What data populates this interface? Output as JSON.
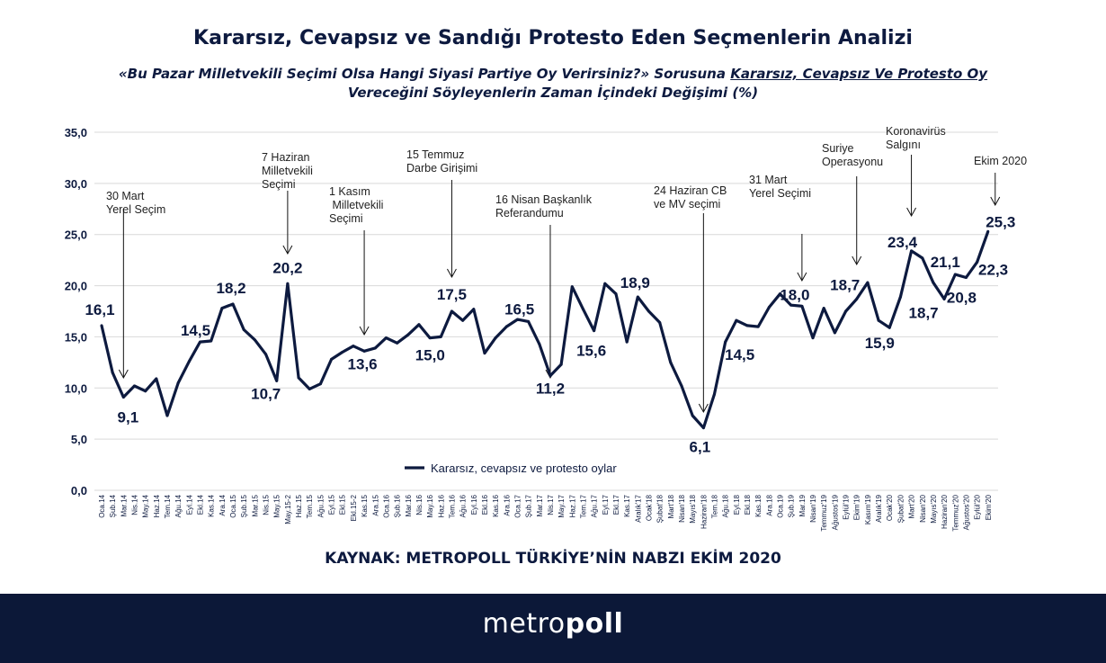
{
  "title": "Kararsız, Cevapsız ve Sandığı Protesto Eden Seçmenlerin Analizi",
  "subtitle": {
    "line1_prefix": "«Bu Pazar Milletvekili Seçimi Olsa Hangi Siyasi Partiye Oy Verirsiniz?» Sorusuna ",
    "line1_underlined": "Kararsız, Cevapsız Ve Protesto Oy",
    "line2": "Vereceğini Söyleyenlerin Zaman İçindeki Değişimi (%)"
  },
  "source": "KAYNAK: METROPOLL TÜRKİYE’NİN NABZI EKİM 2020",
  "logo": {
    "light": "metro",
    "bold": "poll"
  },
  "colors": {
    "line": "#0d1a3f",
    "grid": "#d9d9d9",
    "footer": "#0c1838"
  },
  "chart_data": {
    "type": "line",
    "title": "",
    "xlabel": "",
    "ylabel": "",
    "ylim": [
      0,
      35
    ],
    "yticks": [
      0,
      5,
      10,
      15,
      20,
      25,
      30,
      35
    ],
    "ytick_labels": [
      "0,0",
      "5,0",
      "10,0",
      "15,0",
      "20,0",
      "25,0",
      "30,0",
      "35,0"
    ],
    "grid": true,
    "legend_position": "bottom-center",
    "categories": [
      "Oca.14",
      "Şub.14",
      "Mar.14",
      "Nis.14",
      "May.14",
      "Haz.14",
      "Tem.14",
      "Ağu.14",
      "Eyl.14",
      "Ekl.14",
      "Kas.14",
      "Ara.14",
      "Oca.15",
      "Şub.15",
      "Mar.15",
      "Nis.15",
      "May.15",
      "May.15-2",
      "Haz.15",
      "Tem.15",
      "Ağu.15",
      "Eyl.15",
      "Ekl.15",
      "Ekl.15-2",
      "Kas.15",
      "Ara.15",
      "Oca.16",
      "Şub.16",
      "Mar.16",
      "Nis.16",
      "May.16",
      "Haz.16",
      "Tem.16",
      "Ağu.16",
      "Eyl.16",
      "Ekl.16",
      "Kas.16",
      "Ara.16",
      "Oca.17",
      "Şub.17",
      "Mar.17",
      "Nis.17",
      "May.17",
      "Haz.17",
      "Tem.17",
      "Ağu.17",
      "Eyl.17",
      "Ekl.17",
      "Kas.17",
      "Aralık'17",
      "Ocak'18",
      "Şubat'18",
      "Mart'18",
      "Nisan'18",
      "Mayıs'18",
      "Haziran'18",
      "Tem.18",
      "Ağu.18",
      "Eyl.18",
      "Ekl.18",
      "Kas.18",
      "Ara.18",
      "Oca.19",
      "Şub.19",
      "Mar.19",
      "Nisan'19",
      "Temmuz'19",
      "Ağustos'19",
      "Eylül'19",
      "Ekim'19",
      "Kasım'19",
      "Aralık'19",
      "Ocak'20",
      "Şubat'20",
      "Mart'20",
      "Nisan'20",
      "Mayıs'20",
      "Haziran'20",
      "Temmuz'20",
      "Ağustos'20",
      "Eylül'20",
      "Ekim'20"
    ],
    "series": [
      {
        "name": "Kararsız, cevapsız ve protesto oylar",
        "values": [
          16.1,
          11.5,
          9.1,
          10.2,
          9.7,
          10.9,
          7.3,
          10.5,
          12.6,
          14.5,
          14.6,
          17.8,
          18.2,
          15.7,
          14.7,
          13.3,
          10.7,
          20.2,
          11.0,
          9.9,
          10.4,
          12.8,
          13.5,
          14.1,
          13.6,
          13.9,
          14.9,
          14.4,
          15.2,
          16.2,
          14.9,
          15.0,
          17.5,
          16.6,
          17.7,
          13.4,
          14.9,
          16.0,
          16.7,
          16.5,
          14.3,
          11.2,
          12.3,
          19.9,
          17.7,
          15.6,
          20.2,
          19.2,
          14.5,
          18.9,
          17.5,
          16.4,
          12.5,
          10.2,
          7.3,
          6.1,
          9.4,
          14.5,
          16.6,
          16.1,
          16.0,
          17.9,
          19.2,
          18.1,
          18.0,
          14.9,
          17.8,
          15.4,
          17.5,
          18.7,
          20.3,
          16.6,
          15.9,
          18.9,
          23.4,
          22.7,
          20.3,
          18.7,
          21.1,
          20.8,
          22.3,
          25.3
        ]
      }
    ],
    "data_labels": [
      {
        "index": 0,
        "text": "16,1"
      },
      {
        "index": 2,
        "text": "9,1"
      },
      {
        "index": 9,
        "text": "14,5"
      },
      {
        "index": 12,
        "text": "18,2"
      },
      {
        "index": 16,
        "text": "10,7"
      },
      {
        "index": 17,
        "text": "20,2"
      },
      {
        "index": 24,
        "text": "13,6"
      },
      {
        "index": 31,
        "text": "15,0"
      },
      {
        "index": 32,
        "text": "17,5"
      },
      {
        "index": 39,
        "text": "16,5"
      },
      {
        "index": 41,
        "text": "11,2"
      },
      {
        "index": 45,
        "text": "15,6"
      },
      {
        "index": 49,
        "text": "18,9"
      },
      {
        "index": 55,
        "text": "6,1"
      },
      {
        "index": 57,
        "text": "14,5"
      },
      {
        "index": 64,
        "text": "18,0"
      },
      {
        "index": 69,
        "text": "18,7"
      },
      {
        "index": 72,
        "text": "15,9"
      },
      {
        "index": 74,
        "text": "23,4"
      },
      {
        "index": 77,
        "text": "18,7"
      },
      {
        "index": 78,
        "text": "21,1"
      },
      {
        "index": 79,
        "text": "20,8"
      },
      {
        "index": 80,
        "text": "22,3"
      },
      {
        "index": 81,
        "text": "25,3"
      }
    ],
    "annotations": [
      {
        "index": 2,
        "lines": [
          "30 Mart",
          "Yerel Seçim"
        ]
      },
      {
        "index": 17,
        "lines": [
          "7 Haziran",
          "Milletvekili",
          "Seçimi"
        ]
      },
      {
        "index": 24,
        "lines": [
          "1 Kasım",
          " Milletvekili",
          "Seçimi"
        ]
      },
      {
        "index": 32,
        "lines": [
          "15 Temmuz",
          "Darbe Girişimi"
        ]
      },
      {
        "index": 41,
        "lines": [
          "16 Nisan Başkanlık",
          "Referandumu"
        ]
      },
      {
        "index": 55,
        "lines": [
          "24 Haziran CB",
          "ve MV seçimi"
        ]
      },
      {
        "index": 64,
        "lines": [
          "31 Mart",
          "Yerel Seçimi"
        ]
      },
      {
        "index": 69,
        "lines": [
          "Suriye",
          "Operasyonu"
        ]
      },
      {
        "index": 74,
        "lines": [
          "Koronavirüs",
          "Salgını"
        ]
      },
      {
        "index": 81,
        "lines": [
          "Ekim 2020"
        ]
      }
    ]
  }
}
